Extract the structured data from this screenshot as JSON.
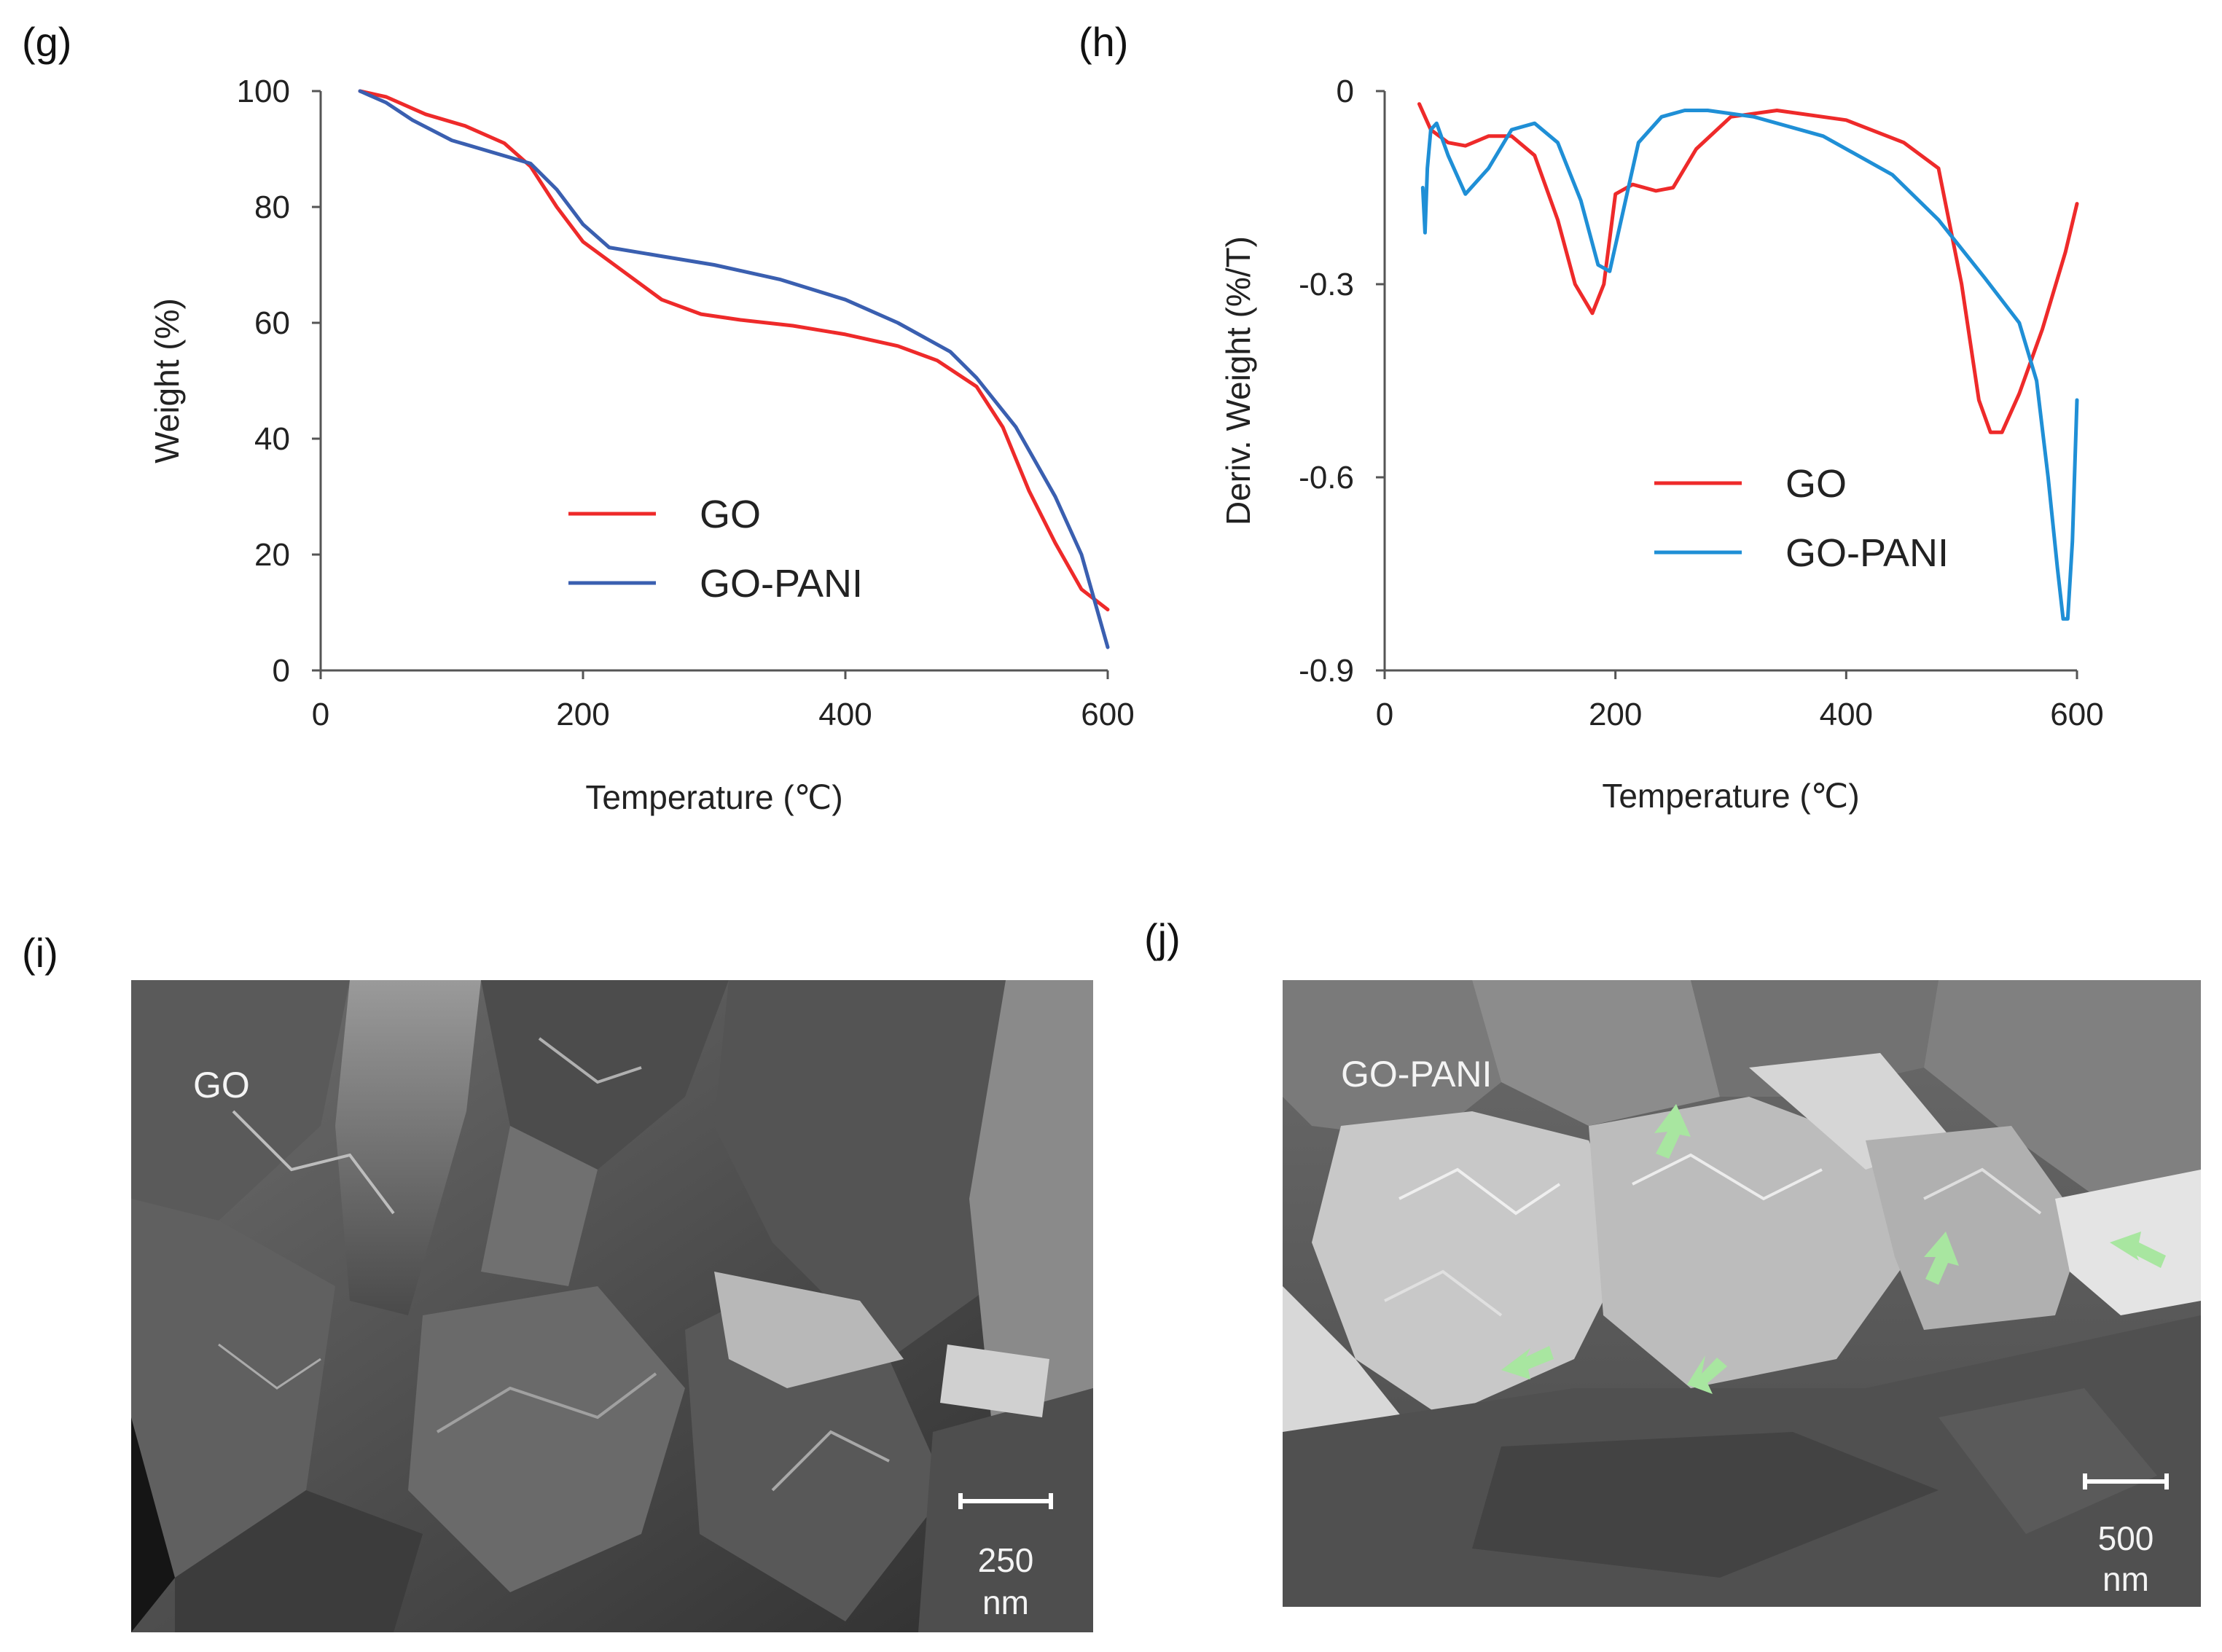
{
  "panel_labels": {
    "g": "(g)",
    "h": "(h)",
    "i": "(i)",
    "j": "(j)"
  },
  "colors": {
    "GO": "#ee2a2a",
    "GO_PANI_g": "#3a5fb0",
    "GO_PANI_h": "#1f8fd6",
    "axis": "#555555",
    "arrow": "#a8e6a0"
  },
  "chart_data": [
    {
      "id": "g",
      "type": "line",
      "xlabel": "Temperature (℃)",
      "ylabel": "Weight (%)",
      "xlim": [
        0,
        600
      ],
      "ylim": [
        0,
        100
      ],
      "xticks": [
        0,
        200,
        400,
        600
      ],
      "yticks": [
        0,
        20,
        40,
        60,
        80,
        100
      ],
      "xtick_labels": [
        "0",
        "200",
        "400",
        "600"
      ],
      "ytick_labels": [
        "0",
        "20",
        "40",
        "60",
        "80",
        "100"
      ],
      "legend_position": "center",
      "series": [
        {
          "name": "GO",
          "color": "#ee2a2a",
          "x": [
            30,
            50,
            80,
            110,
            140,
            160,
            180,
            200,
            230,
            260,
            290,
            320,
            360,
            400,
            440,
            470,
            500,
            520,
            540,
            560,
            580,
            600
          ],
          "y": [
            100,
            99,
            96,
            94,
            91,
            87,
            80,
            74,
            69,
            64,
            61.5,
            60.5,
            59.5,
            58,
            56,
            53.5,
            49,
            42,
            31,
            22,
            14,
            10.5
          ]
        },
        {
          "name": "GO-PANI",
          "color": "#3a5fb0",
          "x": [
            30,
            50,
            70,
            100,
            130,
            160,
            180,
            200,
            220,
            260,
            300,
            350,
            400,
            440,
            480,
            500,
            530,
            560,
            580,
            600
          ],
          "y": [
            100,
            98,
            95,
            91.5,
            89.5,
            87.5,
            83,
            77,
            73,
            71.5,
            70,
            67.5,
            64,
            60,
            55,
            50.5,
            42,
            30,
            20,
            4
          ]
        }
      ]
    },
    {
      "id": "h",
      "type": "line",
      "xlabel": "Temperature (℃)",
      "ylabel": "Deriv. Weight (%/T)",
      "xlim": [
        0,
        600
      ],
      "ylim": [
        -0.9,
        0
      ],
      "xticks": [
        0,
        200,
        400,
        600
      ],
      "yticks": [
        0,
        -0.3,
        -0.6,
        -0.9
      ],
      "xtick_labels": [
        "0",
        "200",
        "400",
        "600"
      ],
      "ytick_labels": [
        "0",
        "-0.3",
        "-0.6",
        "-0.9"
      ],
      "legend_position": "right-center",
      "series": [
        {
          "name": "GO",
          "color": "#ee2a2a",
          "x": [
            30,
            40,
            55,
            70,
            90,
            110,
            130,
            150,
            165,
            180,
            190,
            200,
            215,
            235,
            250,
            270,
            300,
            340,
            400,
            450,
            480,
            500,
            515,
            525,
            535,
            550,
            570,
            590,
            600
          ],
          "y": [
            -0.02,
            -0.06,
            -0.08,
            -0.085,
            -0.07,
            -0.07,
            -0.1,
            -0.2,
            -0.3,
            -0.345,
            -0.3,
            -0.16,
            -0.145,
            -0.155,
            -0.15,
            -0.09,
            -0.04,
            -0.03,
            -0.045,
            -0.08,
            -0.12,
            -0.3,
            -0.48,
            -0.53,
            -0.53,
            -0.47,
            -0.37,
            -0.25,
            -0.175
          ]
        },
        {
          "name": "GO-PANI",
          "color": "#1f8fd6",
          "x": [
            33,
            35,
            37,
            40,
            45,
            55,
            70,
            90,
            110,
            130,
            150,
            170,
            185,
            195,
            205,
            220,
            240,
            260,
            280,
            320,
            380,
            440,
            480,
            520,
            550,
            565,
            575,
            583,
            588,
            592,
            596,
            600
          ],
          "y": [
            -0.15,
            -0.22,
            -0.12,
            -0.06,
            -0.05,
            -0.1,
            -0.16,
            -0.12,
            -0.06,
            -0.05,
            -0.08,
            -0.17,
            -0.27,
            -0.28,
            -0.2,
            -0.08,
            -0.04,
            -0.03,
            -0.03,
            -0.04,
            -0.07,
            -0.13,
            -0.2,
            -0.29,
            -0.36,
            -0.45,
            -0.6,
            -0.74,
            -0.82,
            -0.82,
            -0.7,
            -0.48
          ]
        }
      ]
    }
  ],
  "sem_i": {
    "label": "GO",
    "scale_value": "250",
    "scale_unit": "nm"
  },
  "sem_j": {
    "label": "GO-PANI",
    "scale_value": "500",
    "scale_unit": "nm"
  }
}
